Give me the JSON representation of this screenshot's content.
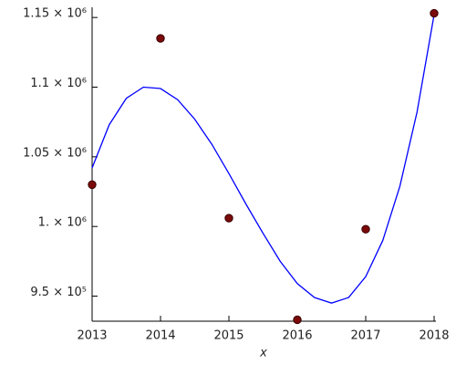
{
  "chart_data": {
    "type": "scatter",
    "x_label": "x",
    "xlim": [
      2013,
      2018
    ],
    "xticks": [
      2013,
      2014,
      2015,
      2016,
      2017,
      2018
    ],
    "ylim": [
      932000,
      1156000
    ],
    "yticks": [
      {
        "value": 950000,
        "label": "9.5 × 10⁵"
      },
      {
        "value": 1000000,
        "label": "1. × 10⁶"
      },
      {
        "value": 1050000,
        "label": "1.05 × 10⁶"
      },
      {
        "value": 1100000,
        "label": "1.1 × 10⁶"
      },
      {
        "value": 1150000,
        "label": "1.15 × 10⁶"
      }
    ],
    "series": [
      {
        "mode": "markers",
        "color": "#7a0a0a",
        "x": [
          2013,
          2014,
          2015,
          2016,
          2017,
          2018
        ],
        "values": [
          1030000,
          1135000,
          1006000,
          933000,
          998000,
          1153000
        ]
      },
      {
        "mode": "line",
        "color": "#0000ff",
        "x": [
          2013,
          2013.25,
          2013.5,
          2013.75,
          2014,
          2014.25,
          2014.5,
          2014.75,
          2015,
          2015.25,
          2015.5,
          2015.75,
          2016,
          2016.25,
          2016.5,
          2016.75,
          2017,
          2017.25,
          2017.5,
          2017.75,
          2018
        ],
        "values": [
          1042000,
          1073000,
          1092000,
          1100000,
          1099000,
          1091000,
          1077000,
          1059000,
          1038000,
          1016000,
          995000,
          975000,
          959000,
          949000,
          945000,
          949000,
          964000,
          990000,
          1029000,
          1082000,
          1152000
        ]
      }
    ]
  }
}
